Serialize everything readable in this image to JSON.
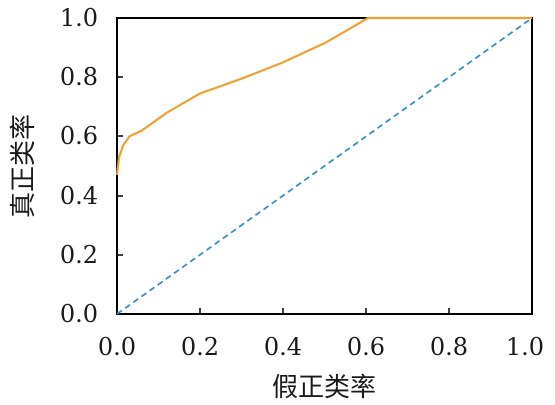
{
  "chart_data": {
    "type": "line",
    "xlabel": "假正类率",
    "ylabel": "真正类率",
    "xlim": [
      0,
      1
    ],
    "ylim": [
      0,
      1
    ],
    "x_ticks": [
      "0.0",
      "0.2",
      "0.4",
      "0.6",
      "0.8",
      "1.0"
    ],
    "y_ticks": [
      "0.0",
      "0.2",
      "0.4",
      "0.6",
      "0.8",
      "1.0"
    ],
    "grid": false,
    "series": [
      {
        "color": "#F0A030",
        "style": "solid",
        "points": [
          [
            0.0,
            0.47
          ],
          [
            0.005,
            0.53
          ],
          [
            0.015,
            0.57
          ],
          [
            0.025,
            0.59
          ],
          [
            0.03,
            0.6
          ],
          [
            0.06,
            0.62
          ],
          [
            0.12,
            0.68
          ],
          [
            0.2,
            0.745
          ],
          [
            0.3,
            0.795
          ],
          [
            0.4,
            0.85
          ],
          [
            0.5,
            0.915
          ],
          [
            0.55,
            0.955
          ],
          [
            0.605,
            1.0
          ],
          [
            1.0,
            1.0
          ]
        ]
      },
      {
        "color": "#3A8FC0",
        "style": "dashed",
        "points": [
          [
            0.0,
            0.0
          ],
          [
            1.0,
            1.0
          ]
        ]
      }
    ]
  }
}
